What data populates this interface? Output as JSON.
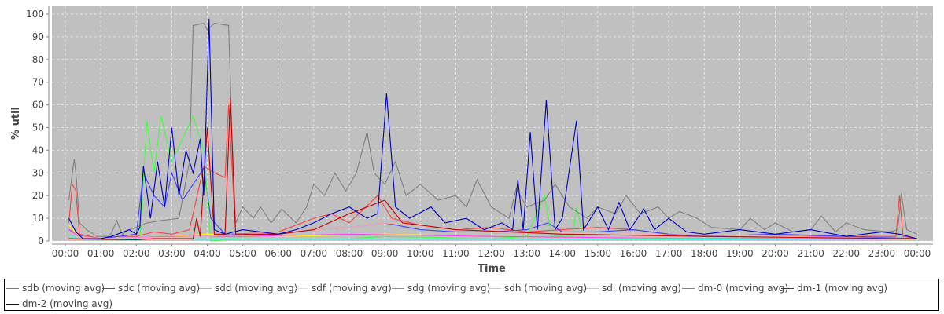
{
  "chart_data": {
    "type": "line",
    "xlabel": "Time",
    "ylabel": "% util",
    "xlim": [
      0,
      24
    ],
    "ylim": [
      0,
      100
    ],
    "x_ticks": [
      "00:00",
      "01:00",
      "02:00",
      "03:00",
      "04:00",
      "05:00",
      "06:00",
      "07:00",
      "08:00",
      "09:00",
      "10:00",
      "11:00",
      "12:00",
      "13:00",
      "14:00",
      "15:00",
      "16:00",
      "17:00",
      "18:00",
      "19:00",
      "20:00",
      "21:00",
      "22:00",
      "23:00",
      "00:00"
    ],
    "y_ticks": [
      "0",
      "10",
      "20",
      "30",
      "40",
      "50",
      "60",
      "70",
      "80",
      "90",
      "100"
    ],
    "grid": true,
    "legend_placement": "bottom",
    "x_unit": "hours",
    "series": [
      {
        "name": "sdb (moving avg)",
        "color": "#ff4040",
        "points": [
          [
            0.1,
            8
          ],
          [
            0.2,
            25
          ],
          [
            0.3,
            22
          ],
          [
            0.4,
            3
          ],
          [
            1,
            1
          ],
          [
            1.5,
            2
          ],
          [
            2,
            2
          ],
          [
            2.5,
            4
          ],
          [
            3,
            3
          ],
          [
            3.5,
            5
          ],
          [
            3.9,
            33
          ],
          [
            4.2,
            30
          ],
          [
            4.5,
            28
          ],
          [
            4.6,
            60
          ],
          [
            4.8,
            3
          ],
          [
            6,
            4
          ],
          [
            7,
            10
          ],
          [
            7.5,
            12
          ],
          [
            8,
            8
          ],
          [
            8.8,
            20
          ],
          [
            9.2,
            10
          ],
          [
            10,
            7
          ],
          [
            11,
            5
          ],
          [
            12,
            6
          ],
          [
            13,
            4
          ],
          [
            14,
            5
          ],
          [
            15,
            6
          ],
          [
            16,
            5
          ],
          [
            17,
            3
          ],
          [
            18,
            2
          ],
          [
            20,
            2
          ],
          [
            22,
            2
          ],
          [
            23.4,
            2
          ],
          [
            23.5,
            20
          ],
          [
            23.6,
            2
          ],
          [
            24,
            1
          ]
        ]
      },
      {
        "name": "sdc (moving avg)",
        "color": "#4040ff",
        "points": [
          [
            0.1,
            5
          ],
          [
            0.5,
            2
          ],
          [
            1,
            1
          ],
          [
            2,
            3
          ],
          [
            2.2,
            30
          ],
          [
            2.5,
            20
          ],
          [
            2.8,
            15
          ],
          [
            3,
            30
          ],
          [
            3.3,
            18
          ],
          [
            3.6,
            25
          ],
          [
            3.9,
            32
          ],
          [
            4.1,
            10
          ],
          [
            4.5,
            3
          ],
          [
            6,
            3
          ],
          [
            7,
            5
          ],
          [
            8,
            6
          ],
          [
            9,
            8
          ],
          [
            10,
            5
          ],
          [
            11,
            4
          ],
          [
            12,
            4
          ],
          [
            13,
            5
          ],
          [
            13.6,
            8
          ],
          [
            14,
            4
          ],
          [
            15,
            4
          ],
          [
            16,
            5
          ],
          [
            17,
            3
          ],
          [
            18,
            2
          ],
          [
            20,
            3
          ],
          [
            22,
            2
          ],
          [
            24,
            1
          ]
        ]
      },
      {
        "name": "sdd (moving avg)",
        "color": "#40ff40",
        "points": [
          [
            0.1,
            2
          ],
          [
            0.4,
            0.5
          ],
          [
            2.1,
            0.5
          ],
          [
            2.3,
            53
          ],
          [
            2.5,
            30
          ],
          [
            2.7,
            55
          ],
          [
            3,
            35
          ],
          [
            3.3,
            45
          ],
          [
            3.6,
            55
          ],
          [
            3.9,
            40
          ],
          [
            4.1,
            0
          ],
          [
            5,
            1
          ],
          [
            8,
            1
          ],
          [
            9,
            2
          ],
          [
            12,
            1
          ],
          [
            13,
            2
          ],
          [
            13.5,
            20
          ],
          [
            13.7,
            2
          ],
          [
            14.3,
            2
          ],
          [
            14.4,
            15
          ],
          [
            14.6,
            1
          ],
          [
            24,
            0.5
          ]
        ]
      },
      {
        "name": "sdf (moving avg)",
        "color": "#ffff00",
        "points": [
          [
            0.1,
            7
          ],
          [
            0.4,
            2
          ],
          [
            1,
            1
          ],
          [
            3,
            2
          ],
          [
            4,
            3
          ],
          [
            6,
            2
          ],
          [
            9,
            3
          ],
          [
            12,
            2
          ],
          [
            18,
            1
          ],
          [
            24,
            1
          ]
        ]
      },
      {
        "name": "sdg (moving avg)",
        "color": "#ff40ff",
        "points": [
          [
            0.1,
            5
          ],
          [
            0.4,
            2
          ],
          [
            1,
            1
          ],
          [
            3,
            2
          ],
          [
            5,
            2
          ],
          [
            8,
            3
          ],
          [
            12,
            2
          ],
          [
            18,
            1
          ],
          [
            24,
            1
          ]
        ]
      },
      {
        "name": "sdh (moving avg)",
        "color": "#40ffff",
        "points": [
          [
            0.1,
            2
          ],
          [
            0.4,
            1
          ],
          [
            3,
            1
          ],
          [
            8,
            1
          ],
          [
            16,
            1
          ],
          [
            24,
            0.5
          ]
        ]
      },
      {
        "name": "sdi (moving avg)",
        "color": "#ffafaf",
        "points": [
          [
            0.1,
            6
          ],
          [
            0.4,
            2
          ],
          [
            1,
            1
          ],
          [
            4,
            2
          ],
          [
            8,
            6
          ],
          [
            9,
            8
          ],
          [
            12,
            4
          ],
          [
            16,
            3
          ],
          [
            24,
            1
          ]
        ]
      },
      {
        "name": "dm-0 (moving avg)",
        "color": "#808080",
        "points": [
          [
            0.1,
            18
          ],
          [
            0.25,
            36
          ],
          [
            0.3,
            30
          ],
          [
            0.4,
            8
          ],
          [
            0.6,
            5
          ],
          [
            0.9,
            2
          ],
          [
            1.2,
            2
          ],
          [
            1.3,
            3.5
          ],
          [
            1.45,
            9
          ],
          [
            1.6,
            3
          ],
          [
            1.8,
            5
          ],
          [
            2,
            6
          ],
          [
            2.3,
            8
          ],
          [
            2.7,
            9
          ],
          [
            3.2,
            10
          ],
          [
            3.5,
            35
          ],
          [
            3.6,
            95
          ],
          [
            3.9,
            96
          ],
          [
            4,
            93
          ],
          [
            4.2,
            96
          ],
          [
            4.6,
            95
          ],
          [
            4.7,
            45
          ],
          [
            4.8,
            8
          ],
          [
            5,
            15
          ],
          [
            5.3,
            10
          ],
          [
            5.5,
            15
          ],
          [
            5.8,
            8
          ],
          [
            6.1,
            14
          ],
          [
            6.5,
            8
          ],
          [
            6.8,
            15
          ],
          [
            7,
            25
          ],
          [
            7.3,
            20
          ],
          [
            7.6,
            30
          ],
          [
            7.9,
            22
          ],
          [
            8.2,
            30
          ],
          [
            8.5,
            48
          ],
          [
            8.7,
            30
          ],
          [
            9,
            25
          ],
          [
            9.3,
            35
          ],
          [
            9.6,
            20
          ],
          [
            10,
            25
          ],
          [
            10.5,
            18
          ],
          [
            11,
            20
          ],
          [
            11.3,
            15
          ],
          [
            11.6,
            27
          ],
          [
            12,
            15
          ],
          [
            12.5,
            10
          ],
          [
            12.7,
            23
          ],
          [
            13,
            15
          ],
          [
            13.5,
            18
          ],
          [
            13.8,
            25
          ],
          [
            14.2,
            15
          ],
          [
            14.7,
            10
          ],
          [
            15,
            15
          ],
          [
            15.5,
            12
          ],
          [
            15.8,
            20
          ],
          [
            16.2,
            12
          ],
          [
            16.7,
            15
          ],
          [
            17,
            10
          ],
          [
            17.3,
            13
          ],
          [
            17.8,
            10
          ],
          [
            18.2,
            6
          ],
          [
            19,
            5
          ],
          [
            19.3,
            10
          ],
          [
            19.7,
            5
          ],
          [
            20,
            8
          ],
          [
            20.5,
            4
          ],
          [
            21,
            5
          ],
          [
            21.3,
            11
          ],
          [
            21.7,
            4
          ],
          [
            22,
            8
          ],
          [
            22.5,
            5
          ],
          [
            23.2,
            4
          ],
          [
            23.45,
            5
          ],
          [
            23.55,
            21
          ],
          [
            23.7,
            5
          ],
          [
            24,
            3
          ]
        ]
      },
      {
        "name": "dm-1 (moving avg)",
        "color": "#c00000",
        "points": [
          [
            0.1,
            1
          ],
          [
            2,
            0.5
          ],
          [
            2.5,
            1
          ],
          [
            3.6,
            1
          ],
          [
            3.7,
            10
          ],
          [
            3.8,
            2
          ],
          [
            4,
            50
          ],
          [
            4.2,
            3
          ],
          [
            4.5,
            3
          ],
          [
            4.65,
            63
          ],
          [
            4.8,
            3
          ],
          [
            6,
            3
          ],
          [
            7,
            5
          ],
          [
            8,
            12
          ],
          [
            9,
            18
          ],
          [
            9.5,
            8
          ],
          [
            11,
            5
          ],
          [
            14,
            3
          ],
          [
            18,
            2
          ],
          [
            24,
            1
          ]
        ]
      },
      {
        "name": "dm-2 (moving avg)",
        "color": "#0000c0",
        "points": [
          [
            0.1,
            10
          ],
          [
            0.3,
            4
          ],
          [
            0.5,
            1
          ],
          [
            1,
            1
          ],
          [
            1.3,
            2
          ],
          [
            1.8,
            5
          ],
          [
            2,
            3
          ],
          [
            2.1,
            6
          ],
          [
            2.2,
            33
          ],
          [
            2.4,
            10
          ],
          [
            2.6,
            35
          ],
          [
            2.8,
            15
          ],
          [
            3,
            50
          ],
          [
            3.2,
            20
          ],
          [
            3.4,
            40
          ],
          [
            3.6,
            30
          ],
          [
            3.8,
            45
          ],
          [
            3.9,
            20
          ],
          [
            4.05,
            98
          ],
          [
            4.2,
            5
          ],
          [
            4.5,
            3
          ],
          [
            5,
            5
          ],
          [
            6,
            3
          ],
          [
            6.5,
            5
          ],
          [
            7,
            8
          ],
          [
            7.5,
            12
          ],
          [
            8,
            15
          ],
          [
            8.5,
            10
          ],
          [
            8.8,
            12
          ],
          [
            9.05,
            65
          ],
          [
            9.3,
            15
          ],
          [
            9.7,
            10
          ],
          [
            10.3,
            15
          ],
          [
            10.7,
            8
          ],
          [
            11.3,
            10
          ],
          [
            11.8,
            5
          ],
          [
            12.3,
            8
          ],
          [
            12.6,
            5
          ],
          [
            12.75,
            27
          ],
          [
            12.9,
            5
          ],
          [
            13.1,
            48
          ],
          [
            13.3,
            5
          ],
          [
            13.55,
            62
          ],
          [
            13.8,
            5
          ],
          [
            14,
            10
          ],
          [
            14.4,
            53
          ],
          [
            14.6,
            5
          ],
          [
            15,
            15
          ],
          [
            15.3,
            5
          ],
          [
            15.6,
            17
          ],
          [
            15.9,
            5
          ],
          [
            16.3,
            14
          ],
          [
            16.6,
            5
          ],
          [
            17,
            10
          ],
          [
            17.5,
            4
          ],
          [
            18,
            3
          ],
          [
            19,
            5
          ],
          [
            20,
            3
          ],
          [
            21,
            5
          ],
          [
            22,
            2
          ],
          [
            23,
            4
          ],
          [
            23.5,
            3
          ],
          [
            24,
            1
          ]
        ]
      }
    ]
  }
}
